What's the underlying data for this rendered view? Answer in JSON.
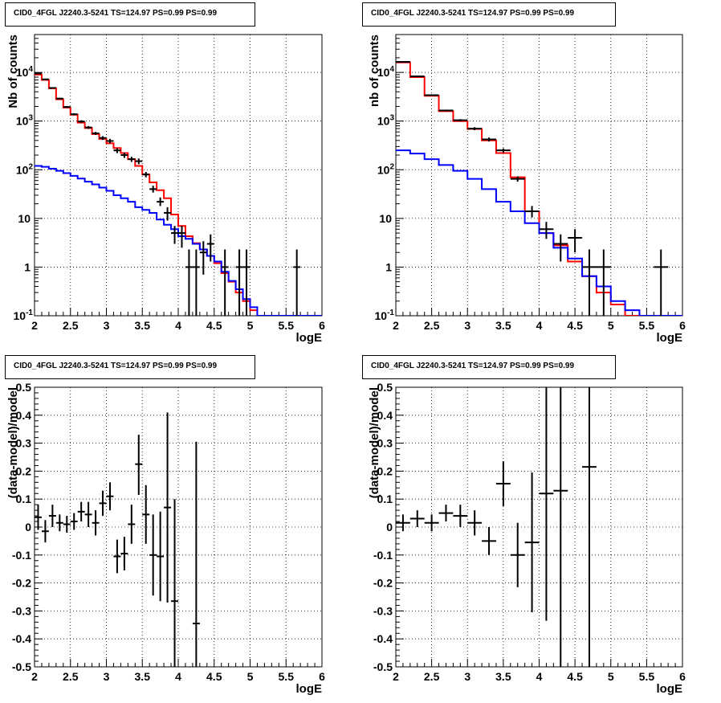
{
  "chart_data": [
    {
      "type": "line",
      "title": "CID0_4FGL J2240.3-5241 TS=124.97 PS=0.99 PS=0.99",
      "xlabel": "logE",
      "ylabel": "Nb of counts",
      "xlim": [
        2,
        6
      ],
      "ylim": [
        0.1,
        60000
      ],
      "yscale": "log",
      "grid": true,
      "x_ticks": [
        "2",
        "2.5",
        "3",
        "3.5",
        "4",
        "4.5",
        "5",
        "5.5",
        "6"
      ],
      "y_ticks": [
        {
          "v": 0.1,
          "label": "10",
          "sup": "-1"
        },
        {
          "v": 1,
          "label": "1",
          "sup": ""
        },
        {
          "v": 10,
          "label": "10",
          "sup": ""
        },
        {
          "v": 100,
          "label": "10",
          "sup": "2"
        },
        {
          "v": 1000,
          "label": "10",
          "sup": "3"
        },
        {
          "v": 10000,
          "label": "10",
          "sup": "4"
        }
      ],
      "bin_edges": [
        2.0,
        2.1,
        2.2,
        2.3,
        2.4,
        2.5,
        2.6,
        2.7,
        2.8,
        2.9,
        3.0,
        3.1,
        3.2,
        3.3,
        3.4,
        3.5,
        3.6,
        3.7,
        3.8,
        3.9,
        4.0,
        4.1,
        4.2,
        4.3,
        4.4,
        4.5,
        4.6,
        4.7,
        4.8,
        4.9,
        5.0,
        5.1,
        5.2,
        5.3,
        5.4,
        5.5,
        5.6,
        5.7,
        5.8,
        5.9,
        6.0
      ],
      "series": [
        {
          "color": "#ff0000",
          "values": [
            9000,
            7000,
            4700,
            2800,
            1900,
            1350,
            930,
            720,
            540,
            430,
            350,
            280,
            220,
            165,
            120,
            80,
            55,
            38,
            26,
            12,
            7,
            4.3,
            3.1,
            2.3,
            1.7,
            1.2,
            0.75,
            0.5,
            0.3,
            0.2,
            0.13,
            0.1,
            0.1,
            0.1,
            0.1,
            0.1,
            0.1,
            0.1,
            0.1,
            0.1
          ]
        },
        {
          "color": "#0000ff",
          "values": [
            120,
            115,
            105,
            95,
            85,
            75,
            66,
            57,
            50,
            43,
            37,
            30,
            26,
            22,
            17,
            15,
            13,
            9.5,
            7.4,
            6.0,
            4.3,
            3.8,
            3.0,
            2.3,
            1.7,
            1.3,
            0.8,
            0.52,
            0.35,
            0.22,
            0.15,
            0.1,
            0.1,
            0.1,
            0.1,
            0.1,
            0.1,
            0.1,
            0.1,
            0.1
          ]
        }
      ],
      "points": [
        {
          "x": 2.05,
          "y": 9500,
          "yl": 9300,
          "yh": 9700
        },
        {
          "x": 2.15,
          "y": 7200,
          "yl": 7000,
          "yh": 7400
        },
        {
          "x": 2.25,
          "y": 4800,
          "yl": 4650,
          "yh": 4950
        },
        {
          "x": 2.35,
          "y": 2900,
          "yl": 2800,
          "yh": 3000
        },
        {
          "x": 2.45,
          "y": 1950,
          "yl": 1870,
          "yh": 2030
        },
        {
          "x": 2.55,
          "y": 1380,
          "yl": 1310,
          "yh": 1450
        },
        {
          "x": 2.65,
          "y": 980,
          "yl": 920,
          "yh": 1040
        },
        {
          "x": 2.75,
          "y": 740,
          "yl": 690,
          "yh": 790
        },
        {
          "x": 2.85,
          "y": 560,
          "yl": 520,
          "yh": 600
        },
        {
          "x": 2.95,
          "y": 450,
          "yl": 410,
          "yh": 490
        },
        {
          "x": 3.05,
          "y": 390,
          "yl": 350,
          "yh": 430
        },
        {
          "x": 3.15,
          "y": 250,
          "yl": 220,
          "yh": 280
        },
        {
          "x": 3.25,
          "y": 200,
          "yl": 175,
          "yh": 225
        },
        {
          "x": 3.35,
          "y": 165,
          "yl": 145,
          "yh": 185
        },
        {
          "x": 3.45,
          "y": 150,
          "yl": 130,
          "yh": 170
        },
        {
          "x": 3.55,
          "y": 80,
          "yl": 70,
          "yh": 90
        },
        {
          "x": 3.65,
          "y": 40,
          "yl": 34,
          "yh": 47
        },
        {
          "x": 3.75,
          "y": 22,
          "yl": 18,
          "yh": 27
        },
        {
          "x": 3.85,
          "y": 13,
          "yl": 9,
          "yh": 17
        },
        {
          "x": 3.95,
          "y": 5,
          "yl": 3,
          "yh": 7
        },
        {
          "x": 4.05,
          "y": 5,
          "yl": 2.5,
          "yh": 7
        },
        {
          "x": 4.15,
          "y": 1,
          "yl": 0.1,
          "yh": 2.3
        },
        {
          "x": 4.25,
          "y": 1,
          "yl": 0.1,
          "yh": 2.3
        },
        {
          "x": 4.35,
          "y": 2,
          "yl": 0.7,
          "yh": 3.4
        },
        {
          "x": 4.45,
          "y": 3,
          "yl": 1.3,
          "yh": 4.7
        },
        {
          "x": 4.65,
          "y": 1,
          "yl": 0.1,
          "yh": 2.3
        },
        {
          "x": 4.85,
          "y": 1,
          "yl": 0.1,
          "yh": 2.3
        },
        {
          "x": 4.95,
          "y": 1,
          "yl": 0.1,
          "yh": 2.3
        },
        {
          "x": 5.65,
          "y": 1,
          "yl": 0.1,
          "yh": 2.3
        }
      ]
    },
    {
      "type": "line",
      "title": "CID0_4FGL J2240.3-5241 TS=124.97 PS=0.99 PS=0.99",
      "xlabel": "logE",
      "ylabel": "nb of counts",
      "xlim": [
        2,
        6
      ],
      "ylim": [
        0.1,
        60000
      ],
      "yscale": "log",
      "grid": true,
      "x_ticks": [
        "2",
        "2.5",
        "3",
        "3.5",
        "4",
        "4.5",
        "5",
        "5.5",
        "6"
      ],
      "y_ticks": [
        {
          "v": 0.1,
          "label": "10",
          "sup": "-1"
        },
        {
          "v": 1,
          "label": "1",
          "sup": ""
        },
        {
          "v": 10,
          "label": "10",
          "sup": ""
        },
        {
          "v": 100,
          "label": "10",
          "sup": "2"
        },
        {
          "v": 1000,
          "label": "10",
          "sup": "3"
        },
        {
          "v": 10000,
          "label": "10",
          "sup": "4"
        }
      ],
      "bin_edges": [
        2.0,
        2.2,
        2.4,
        2.6,
        2.8,
        3.0,
        3.2,
        3.4,
        3.6,
        3.8,
        4.0,
        4.2,
        4.4,
        4.6,
        4.8,
        5.0,
        5.2,
        5.4,
        5.6,
        5.8,
        6.0
      ],
      "series": [
        {
          "color": "#ff0000",
          "values": [
            16000,
            8000,
            3300,
            1600,
            1000,
            690,
            400,
            220,
            70,
            14,
            5,
            2.8,
            1.3,
            0.65,
            0.3,
            0.17,
            0.1,
            0.1,
            0.1,
            0.1
          ]
        },
        {
          "color": "#0000ff",
          "values": [
            250,
            215,
            165,
            125,
            95,
            65,
            40,
            22,
            14,
            8,
            5,
            2.5,
            1.5,
            0.65,
            0.4,
            0.2,
            0.13,
            0.1,
            0.1,
            0.1
          ]
        }
      ],
      "points": [
        {
          "x": 2.1,
          "y": 16500,
          "yl": 16300,
          "yh": 16700
        },
        {
          "x": 2.3,
          "y": 8300,
          "yl": 8150,
          "yh": 8450
        },
        {
          "x": 2.5,
          "y": 3400,
          "yl": 3300,
          "yh": 3500
        },
        {
          "x": 2.7,
          "y": 1650,
          "yl": 1580,
          "yh": 1720
        },
        {
          "x": 2.9,
          "y": 1040,
          "yl": 980,
          "yh": 1100
        },
        {
          "x": 3.1,
          "y": 700,
          "yl": 650,
          "yh": 750
        },
        {
          "x": 3.3,
          "y": 420,
          "yl": 380,
          "yh": 460
        },
        {
          "x": 3.5,
          "y": 250,
          "yl": 225,
          "yh": 275
        },
        {
          "x": 3.7,
          "y": 65,
          "yl": 57,
          "yh": 73
        },
        {
          "x": 3.9,
          "y": 14,
          "yl": 10.5,
          "yh": 18
        },
        {
          "x": 4.1,
          "y": 6,
          "yl": 3.8,
          "yh": 8.5
        },
        {
          "x": 4.3,
          "y": 3,
          "yl": 1.3,
          "yh": 4.7
        },
        {
          "x": 4.5,
          "y": 4,
          "yl": 2.0,
          "yh": 6.0
        },
        {
          "x": 4.7,
          "y": 1,
          "yl": 0.1,
          "yh": 2.3
        },
        {
          "x": 4.9,
          "y": 1,
          "yl": 0.1,
          "yh": 2.3
        },
        {
          "x": 5.7,
          "y": 1,
          "yl": 0.1,
          "yh": 2.3
        }
      ]
    },
    {
      "type": "scatter",
      "title": "CID0_4FGL J2240.3-5241 TS=124.97 PS=0.99 PS=0.99",
      "xlabel": "logE",
      "ylabel": "(data-model)/model",
      "xlim": [
        2,
        6
      ],
      "ylim": [
        -0.5,
        0.5
      ],
      "grid": true,
      "x_ticks": [
        "2",
        "2.5",
        "3",
        "3.5",
        "4",
        "4.5",
        "5",
        "5.5",
        "6"
      ],
      "y_ticks": [
        "-0.5",
        "-0.4",
        "-0.3",
        "-0.2",
        "-0.1",
        "0",
        "0.1",
        "0.2",
        "0.3",
        "0.4",
        "0.5"
      ],
      "xerr": 0.05,
      "points": [
        {
          "x": 2.05,
          "y": 0.035,
          "yl": -0.01,
          "yh": 0.08
        },
        {
          "x": 2.15,
          "y": -0.015,
          "yl": -0.055,
          "yh": 0.025
        },
        {
          "x": 2.25,
          "y": 0.04,
          "yl": 0.0,
          "yh": 0.08
        },
        {
          "x": 2.35,
          "y": 0.015,
          "yl": -0.015,
          "yh": 0.045
        },
        {
          "x": 2.45,
          "y": 0.01,
          "yl": -0.02,
          "yh": 0.04
        },
        {
          "x": 2.55,
          "y": 0.02,
          "yl": -0.01,
          "yh": 0.05
        },
        {
          "x": 2.65,
          "y": 0.055,
          "yl": 0.02,
          "yh": 0.09
        },
        {
          "x": 2.75,
          "y": 0.045,
          "yl": 0.0,
          "yh": 0.09
        },
        {
          "x": 2.85,
          "y": 0.015,
          "yl": -0.03,
          "yh": 0.06
        },
        {
          "x": 2.95,
          "y": 0.085,
          "yl": 0.04,
          "yh": 0.13
        },
        {
          "x": 3.05,
          "y": 0.11,
          "yl": 0.06,
          "yh": 0.16
        },
        {
          "x": 3.15,
          "y": -0.105,
          "yl": -0.165,
          "yh": -0.045
        },
        {
          "x": 3.25,
          "y": -0.095,
          "yl": -0.155,
          "yh": -0.035
        },
        {
          "x": 3.35,
          "y": 0.01,
          "yl": -0.06,
          "yh": 0.08
        },
        {
          "x": 3.45,
          "y": 0.225,
          "yl": 0.115,
          "yh": 0.33
        },
        {
          "x": 3.55,
          "y": 0.045,
          "yl": -0.06,
          "yh": 0.15
        },
        {
          "x": 3.65,
          "y": -0.1,
          "yl": -0.245,
          "yh": 0.045
        },
        {
          "x": 3.75,
          "y": -0.105,
          "yl": -0.265,
          "yh": 0.055
        },
        {
          "x": 3.85,
          "y": 0.07,
          "yl": -0.27,
          "yh": 0.41
        },
        {
          "x": 3.95,
          "y": -0.265,
          "yl": -0.5,
          "yh": 0.1
        },
        {
          "x": 4.25,
          "y": -0.345,
          "yl": -0.5,
          "yh": 0.305
        }
      ]
    },
    {
      "type": "scatter",
      "title": "CID0_4FGL J2240.3-5241 TS=124.97 PS=0.99 PS=0.99",
      "xlabel": "logE",
      "ylabel": "(data-model)/model",
      "xlim": [
        2,
        6
      ],
      "ylim": [
        -0.5,
        0.5
      ],
      "grid": true,
      "x_ticks": [
        "2",
        "2.5",
        "3",
        "3.5",
        "4",
        "4.5",
        "5",
        "5.5",
        "6"
      ],
      "y_ticks": [
        "-0.5",
        "-0.4",
        "-0.3",
        "-0.2",
        "-0.1",
        "0",
        "0.1",
        "0.2",
        "0.3",
        "0.4",
        "0.5"
      ],
      "xerr": 0.1,
      "points": [
        {
          "x": 2.1,
          "y": 0.015,
          "yl": -0.015,
          "yh": 0.045
        },
        {
          "x": 2.3,
          "y": 0.03,
          "yl": 0.0,
          "yh": 0.06
        },
        {
          "x": 2.5,
          "y": 0.015,
          "yl": -0.015,
          "yh": 0.045
        },
        {
          "x": 2.7,
          "y": 0.05,
          "yl": 0.02,
          "yh": 0.08
        },
        {
          "x": 2.9,
          "y": 0.04,
          "yl": 0.0,
          "yh": 0.08
        },
        {
          "x": 3.1,
          "y": 0.015,
          "yl": -0.03,
          "yh": 0.06
        },
        {
          "x": 3.3,
          "y": -0.05,
          "yl": -0.1,
          "yh": 0.0
        },
        {
          "x": 3.5,
          "y": 0.155,
          "yl": 0.075,
          "yh": 0.235
        },
        {
          "x": 3.7,
          "y": -0.1,
          "yl": -0.215,
          "yh": 0.015
        },
        {
          "x": 3.9,
          "y": -0.055,
          "yl": -0.305,
          "yh": 0.195
        },
        {
          "x": 4.1,
          "y": 0.12,
          "yl": -0.335,
          "yh": 0.5
        },
        {
          "x": 4.3,
          "y": 0.13,
          "yl": -0.5,
          "yh": 0.5
        },
        {
          "x": 4.7,
          "y": 0.215,
          "yl": -0.5,
          "yh": 0.5
        }
      ]
    }
  ]
}
